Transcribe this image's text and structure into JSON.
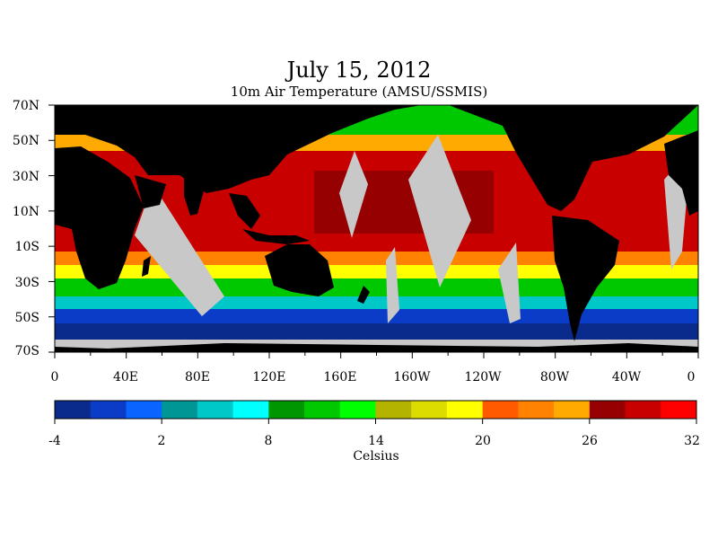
{
  "title": "July 15, 2012",
  "subtitle": "10m Air Temperature (AMSU/SSMIS)",
  "map": {
    "lat_labels": [
      "70N",
      "50N",
      "30N",
      "10N",
      "10S",
      "30S",
      "50S",
      "70S"
    ],
    "lon_labels": [
      "0",
      "40E",
      "80E",
      "120E",
      "160E",
      "160W",
      "120W",
      "80W",
      "40W",
      "0"
    ],
    "land_color": "#000000",
    "missing_color": "#c8c8c8"
  },
  "colorbar": {
    "title": "Celsius",
    "tick_labels": [
      "-4",
      "2",
      "8",
      "14",
      "20",
      "26",
      "32"
    ],
    "colors": [
      "#0a2a8c",
      "#0a3cc8",
      "#0a64ff",
      "#009696",
      "#00c8c8",
      "#00ffff",
      "#009600",
      "#00c800",
      "#00ff00",
      "#b4b400",
      "#dcdc00",
      "#ffff00",
      "#ff5a00",
      "#ff8200",
      "#ffaa00",
      "#960000",
      "#c80000",
      "#ff0000"
    ]
  }
}
